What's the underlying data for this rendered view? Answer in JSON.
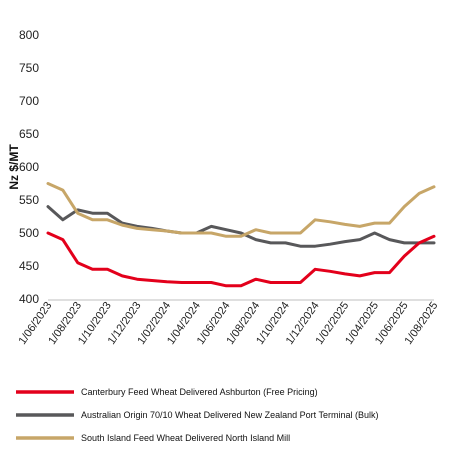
{
  "chart_data": {
    "type": "line",
    "ylabel": "Nz $/MT",
    "xlabel": "",
    "ylim": [
      400,
      800
    ],
    "y_ticks": [
      "400",
      "450",
      "500",
      "550",
      "600",
      "650",
      "700",
      "750",
      "800"
    ],
    "x": [
      "1/06/2023",
      "1/07/2023",
      "1/08/2023",
      "1/09/2023",
      "1/10/2023",
      "1/11/2023",
      "1/12/2023",
      "1/01/2024",
      "1/02/2024",
      "1/03/2024",
      "1/04/2024",
      "1/05/2024",
      "1/06/2024",
      "1/07/2024",
      "1/08/2024",
      "1/09/2024",
      "1/10/2024",
      "1/11/2024",
      "1/12/2024",
      "1/01/2025",
      "1/02/2025",
      "1/03/2025",
      "1/04/2025",
      "1/05/2025",
      "1/06/2025",
      "1/07/2025",
      "1/08/2025"
    ],
    "x_tick_labels": [
      "1/06/2023",
      "1/08/2023",
      "1/10/2023",
      "1/12/2023",
      "1/02/2024",
      "1/04/2024",
      "1/06/2024",
      "1/08/2024",
      "1/10/2024",
      "1/12/2024",
      "1/02/2025",
      "1/04/2025",
      "1/06/2025",
      "1/08/2025"
    ],
    "grid": false,
    "legend_position": "bottom",
    "series": [
      {
        "name": "Canterbury Feed Wheat Delivered Ashburton (Free Pricing)",
        "color": "#e3001b",
        "values": [
          500,
          490,
          455,
          445,
          445,
          435,
          430,
          428,
          426,
          425,
          425,
          425,
          420,
          420,
          430,
          425,
          425,
          425,
          445,
          442,
          438,
          435,
          440,
          440,
          465,
          485,
          495
        ]
      },
      {
        "name": "Australian Origin 70/10 Wheat Delivered New Zealand Port Terminal (Bulk)",
        "color": "#58585a",
        "values": [
          540,
          520,
          535,
          530,
          530,
          515,
          510,
          507,
          503,
          500,
          500,
          510,
          505,
          500,
          490,
          485,
          485,
          480,
          480,
          483,
          487,
          490,
          500,
          490,
          485,
          485,
          485
        ]
      },
      {
        "name": "South Island Feed Wheat Delivered North Island Mill",
        "color": "#c7a668",
        "values": [
          575,
          565,
          530,
          520,
          520,
          512,
          507,
          505,
          503,
          500,
          500,
          500,
          495,
          495,
          505,
          500,
          500,
          500,
          520,
          517,
          513,
          510,
          515,
          515,
          540,
          560,
          570
        ]
      }
    ]
  }
}
